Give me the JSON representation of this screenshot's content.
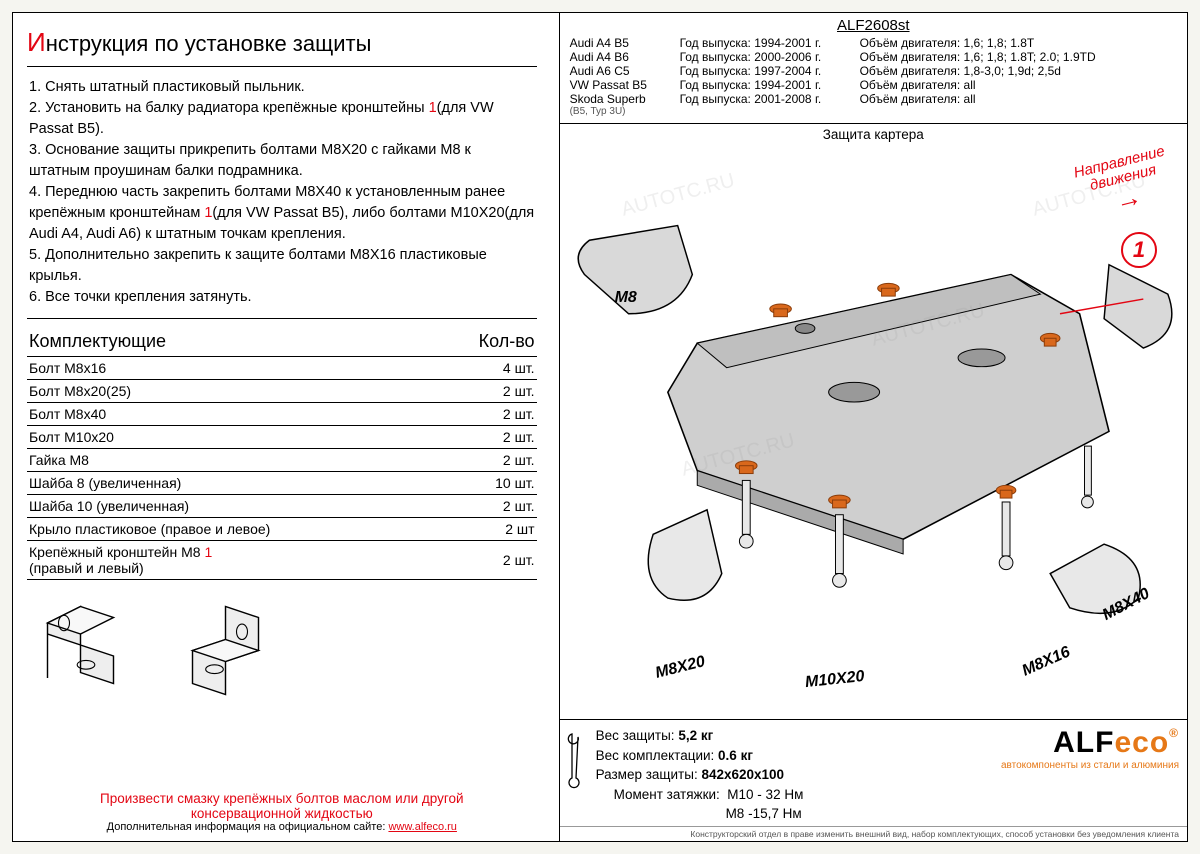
{
  "title": {
    "cap": "И",
    "rest": "нструкция по установке защиты"
  },
  "steps": [
    "1. Снять штатный пластиковый пыльник.",
    "2. Установить на балку радиатора крепёжные кронштейны <span class='red'>1</span>(для VW Passat B5).",
    "3. Основание защиты прикрепить болтами М8Х20 с гайками М8 к штатным проушинам балки подрамника.",
    "4. Переднюю часть закрепить болтами М8Х40 к установленным ранее крепёжным кронштейнам <span class='red'>1</span>(для VW Passat B5), либо болтами М10Х20(для Audi A4, Audi A6) к штатным точкам крепления.",
    "5. Дополнительно закрепить к защите болтами М8Х16 пластиковые крылья.",
    "6. Все точки крепления затянуть."
  ],
  "components_header": {
    "left": "Комплектующие",
    "right": "Кол-во"
  },
  "components": [
    {
      "name": "Болт М8х16",
      "qty": "4 шт."
    },
    {
      "name": "Болт М8х20(25)",
      "qty": "2 шт."
    },
    {
      "name": "Болт М8х40",
      "qty": "2 шт."
    },
    {
      "name": "Болт М10х20",
      "qty": "2 шт."
    },
    {
      "name": "Гайка М8",
      "qty": "2 шт."
    },
    {
      "name": "Шайба 8 (увеличенная)",
      "qty": "10 шт."
    },
    {
      "name": "Шайба 10 (увеличенная)",
      "qty": "2 шт."
    },
    {
      "name": "Крыло пластиковое (правое и левое)",
      "qty": "2 шт"
    },
    {
      "name": "Крепёжный кронштейн М8 <span class='red'>1</span><br>(правый и левый)",
      "qty": "2 шт."
    }
  ],
  "footer": {
    "line1": "Произвести смазку крепёжных болтов маслом или другой",
    "line2": "консервационной жидкостью",
    "line3_pre": "Дополнительная информация на официальном сайте: ",
    "link": "www.alfeco.ru"
  },
  "model_code": "ALF2608st",
  "models": [
    {
      "car": "Audi A4 B5",
      "years": "Год выпуска: 1994-2001 г.",
      "engine": "Объём двигателя: 1,6; 1,8; 1.8T"
    },
    {
      "car": "Audi A4 B6",
      "years": "Год выпуска: 2000-2006 г.",
      "engine": "Объём двигателя: 1,6; 1,8; 1.8T; 2.0; 1.9TD"
    },
    {
      "car": "Audi A6 C5",
      "years": "Год выпуска: 1997-2004 г.",
      "engine": "Объём двигателя: 1,8-3,0; 1,9d; 2,5d"
    },
    {
      "car": "VW Passat B5",
      "years": "Год выпуска: 1994-2001 г.",
      "engine": "Объём двигателя: all"
    },
    {
      "car": "Skoda Superb",
      "sub": "(B5, Typ 3U)",
      "years": "Год выпуска: 2001-2008 г.",
      "engine": "Объём двигателя: all"
    }
  ],
  "diagram": {
    "title": "Защита картера",
    "direction": "Направление\nдвижения",
    "badge": "1",
    "callouts": {
      "m8": "M8",
      "m8x20": "M8X20",
      "m10x20": "M10X20",
      "m8x16": "M8X16",
      "m8x40": "M8X40"
    }
  },
  "specs": {
    "weight_label": "Вес защиты:",
    "weight": "5,2 кг",
    "kit_weight_label": "Вес комплектации:",
    "kit_weight": "0.6 кг",
    "size_label": "Размер защиты:",
    "size": "842х620х100",
    "torque_label": "Момент затяжки:",
    "torque1": "М10 - 32 Нм",
    "torque2": "М8 -15,7 Нм"
  },
  "logo": {
    "brand": "ALFeco",
    "tag": "автокомпоненты из стали и алюминия"
  },
  "fine": "Конструкторский отдел в праве изменить внешний вид, набор комплектующих, способ установки без уведомления клиента",
  "watermark": "AUTOTC.RU",
  "colors": {
    "accent": "#e30613",
    "orange": "#e67817",
    "bolt": "#d9681c"
  }
}
